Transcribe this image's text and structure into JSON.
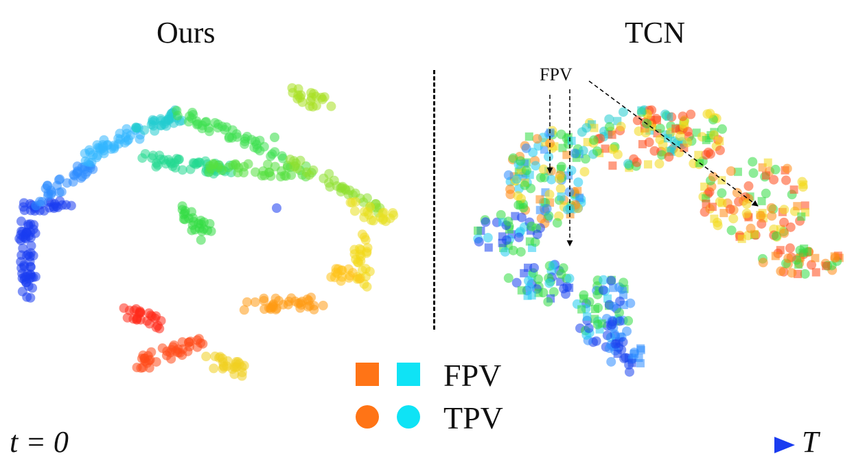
{
  "chart_data": [
    {
      "type": "scatter",
      "title": "Ours",
      "description_of_points": "embedding points colored by time (t=0 red to T blue)",
      "clusters": [
        {
          "color": "#1a44ee",
          "points": "lower-left vertical column"
        },
        {
          "color": "#2da6ff",
          "points": "upper-left arc"
        },
        {
          "color": "#33dd44",
          "points": "top arc and center"
        },
        {
          "color": "#e8e020",
          "points": "right side"
        },
        {
          "color": "#ff8a10",
          "points": "lower right"
        },
        {
          "color": "#ff2a1a",
          "points": "lower middle"
        }
      ]
    },
    {
      "type": "scatter",
      "title": "TCN",
      "annotation": "FPV"
    }
  ],
  "labels": {
    "left_title": "Ours",
    "right_title": "TCN",
    "annotation": "FPV",
    "legend_fpv": "FPV",
    "legend_tpv": "TPV",
    "axis_start": "t = 0",
    "axis_end": "T"
  },
  "colors": {
    "red": "#ff2a1a",
    "orange": "#ff7a14",
    "yellow": "#e8e020",
    "green": "#33dd44",
    "cyan": "#12dcf0",
    "blue": "#1a3cf0",
    "legend_orange": "#ff7416",
    "legend_cyan": "#0fe3f5"
  }
}
